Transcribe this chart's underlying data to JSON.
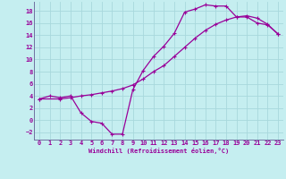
{
  "xlabel": "Windchill (Refroidissement éolien,°C)",
  "background_color": "#c5eef0",
  "grid_color": "#a8d8dc",
  "line_color": "#990099",
  "spine_color": "#7070a0",
  "xlim": [
    -0.5,
    23.5
  ],
  "ylim": [
    -3.2,
    19.5
  ],
  "xticks": [
    0,
    1,
    2,
    3,
    4,
    5,
    6,
    7,
    8,
    9,
    10,
    11,
    12,
    13,
    14,
    15,
    16,
    17,
    18,
    19,
    20,
    21,
    22,
    23
  ],
  "yticks": [
    -2,
    0,
    2,
    4,
    6,
    8,
    10,
    12,
    14,
    16,
    18
  ],
  "curve1_x": [
    0,
    1,
    2,
    3,
    4,
    5,
    6,
    7,
    8,
    9,
    10,
    11,
    12,
    13,
    14,
    15,
    16,
    17,
    18,
    19,
    20,
    21,
    22,
    23
  ],
  "curve1_y": [
    3.5,
    4.0,
    3.7,
    4.0,
    1.2,
    -0.2,
    -0.5,
    -2.3,
    -2.3,
    5.0,
    8.2,
    10.5,
    12.2,
    14.3,
    17.8,
    18.3,
    19.0,
    18.8,
    18.8,
    17.0,
    17.0,
    16.0,
    15.7,
    14.2
  ],
  "curve2_x": [
    0,
    2,
    3,
    4,
    5,
    6,
    7,
    8,
    9,
    10,
    11,
    12,
    13,
    14,
    15,
    16,
    17,
    18,
    19,
    20,
    21,
    22,
    23
  ],
  "curve2_y": [
    3.5,
    3.5,
    3.7,
    4.0,
    4.2,
    4.5,
    4.8,
    5.2,
    5.8,
    6.8,
    8.0,
    9.0,
    10.5,
    12.0,
    13.5,
    14.8,
    15.8,
    16.5,
    17.0,
    17.2,
    16.8,
    15.8,
    14.2
  ]
}
